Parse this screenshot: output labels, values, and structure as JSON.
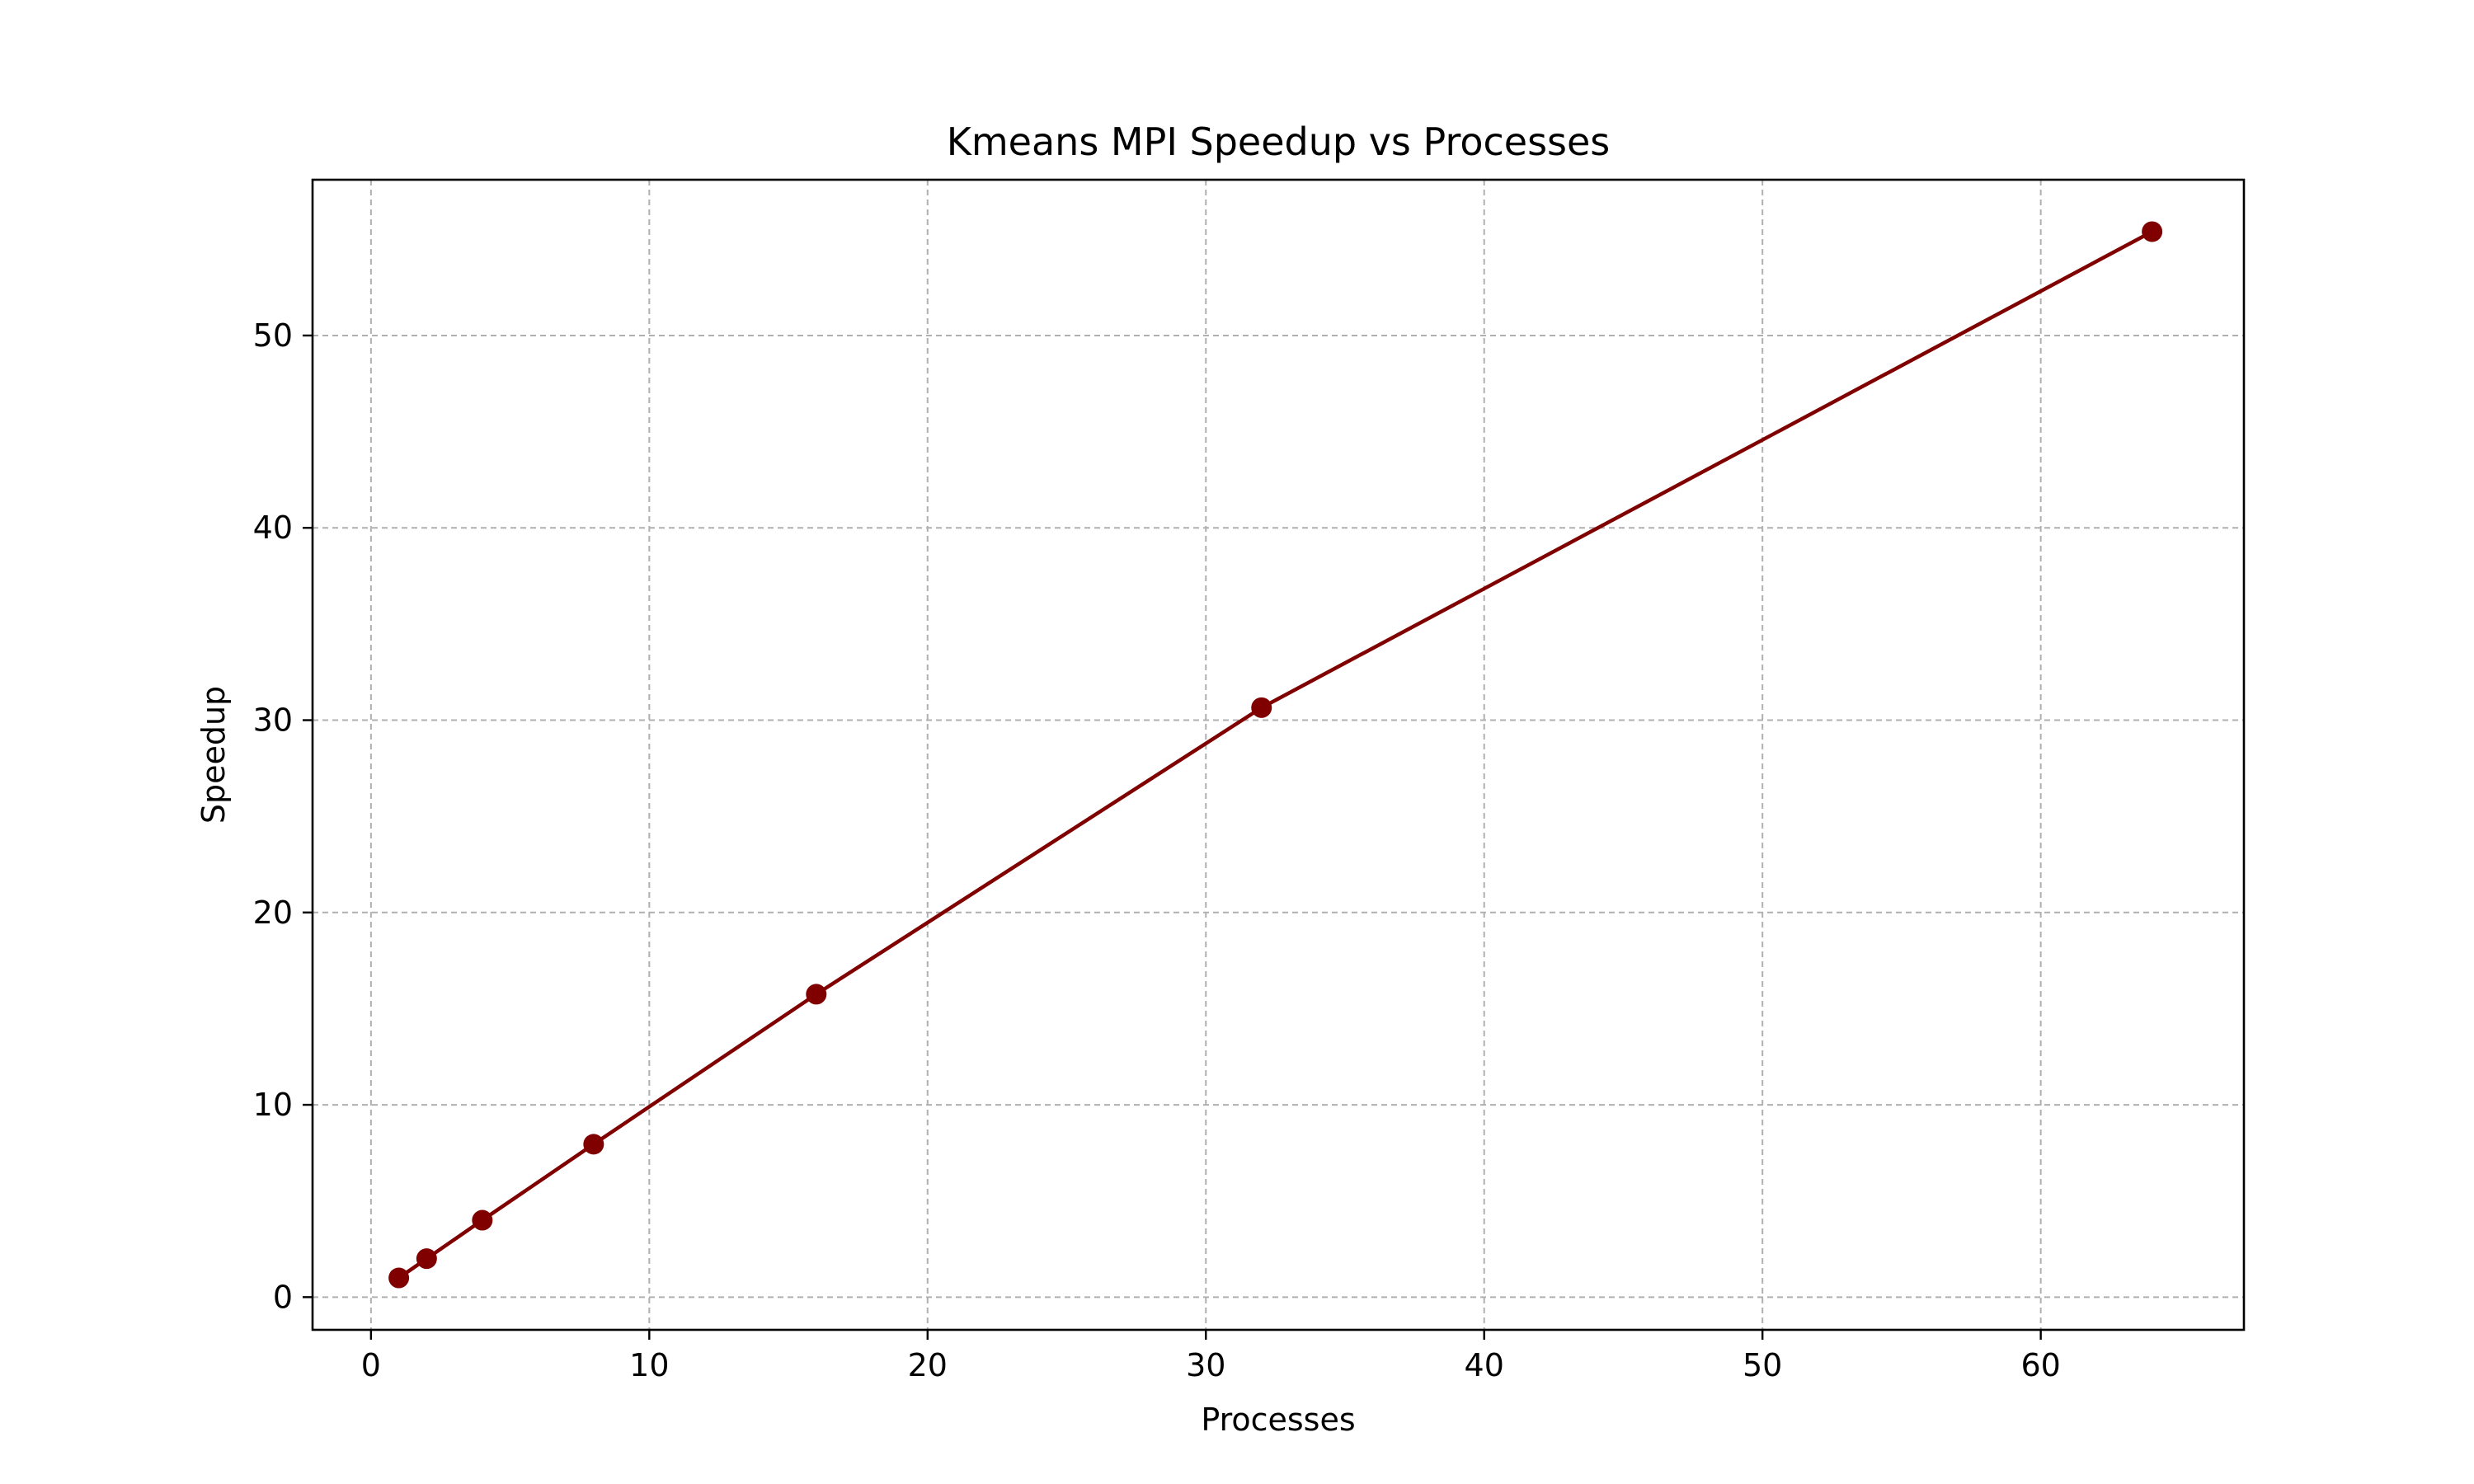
{
  "chart_data": {
    "type": "line",
    "title": "Kmeans MPI Speedup vs Processes",
    "xlabel": "Processes",
    "ylabel": "Speedup",
    "x": [
      1,
      2,
      4,
      8,
      16,
      32,
      64
    ],
    "series": [
      {
        "values": [
          1.0,
          2.0,
          4.0,
          7.95,
          15.75,
          30.65,
          55.4
        ]
      }
    ],
    "xlim": [
      -2.1,
      67.3
    ],
    "ylim": [
      -1.7,
      58.1
    ],
    "xticks": [
      0,
      10,
      20,
      30,
      40,
      50,
      60
    ],
    "yticks": [
      0,
      10,
      20,
      30,
      40,
      50
    ],
    "grid": true,
    "colors": {
      "line": "#800000",
      "marker": "#800000",
      "grid": "#b0b0b0"
    }
  }
}
